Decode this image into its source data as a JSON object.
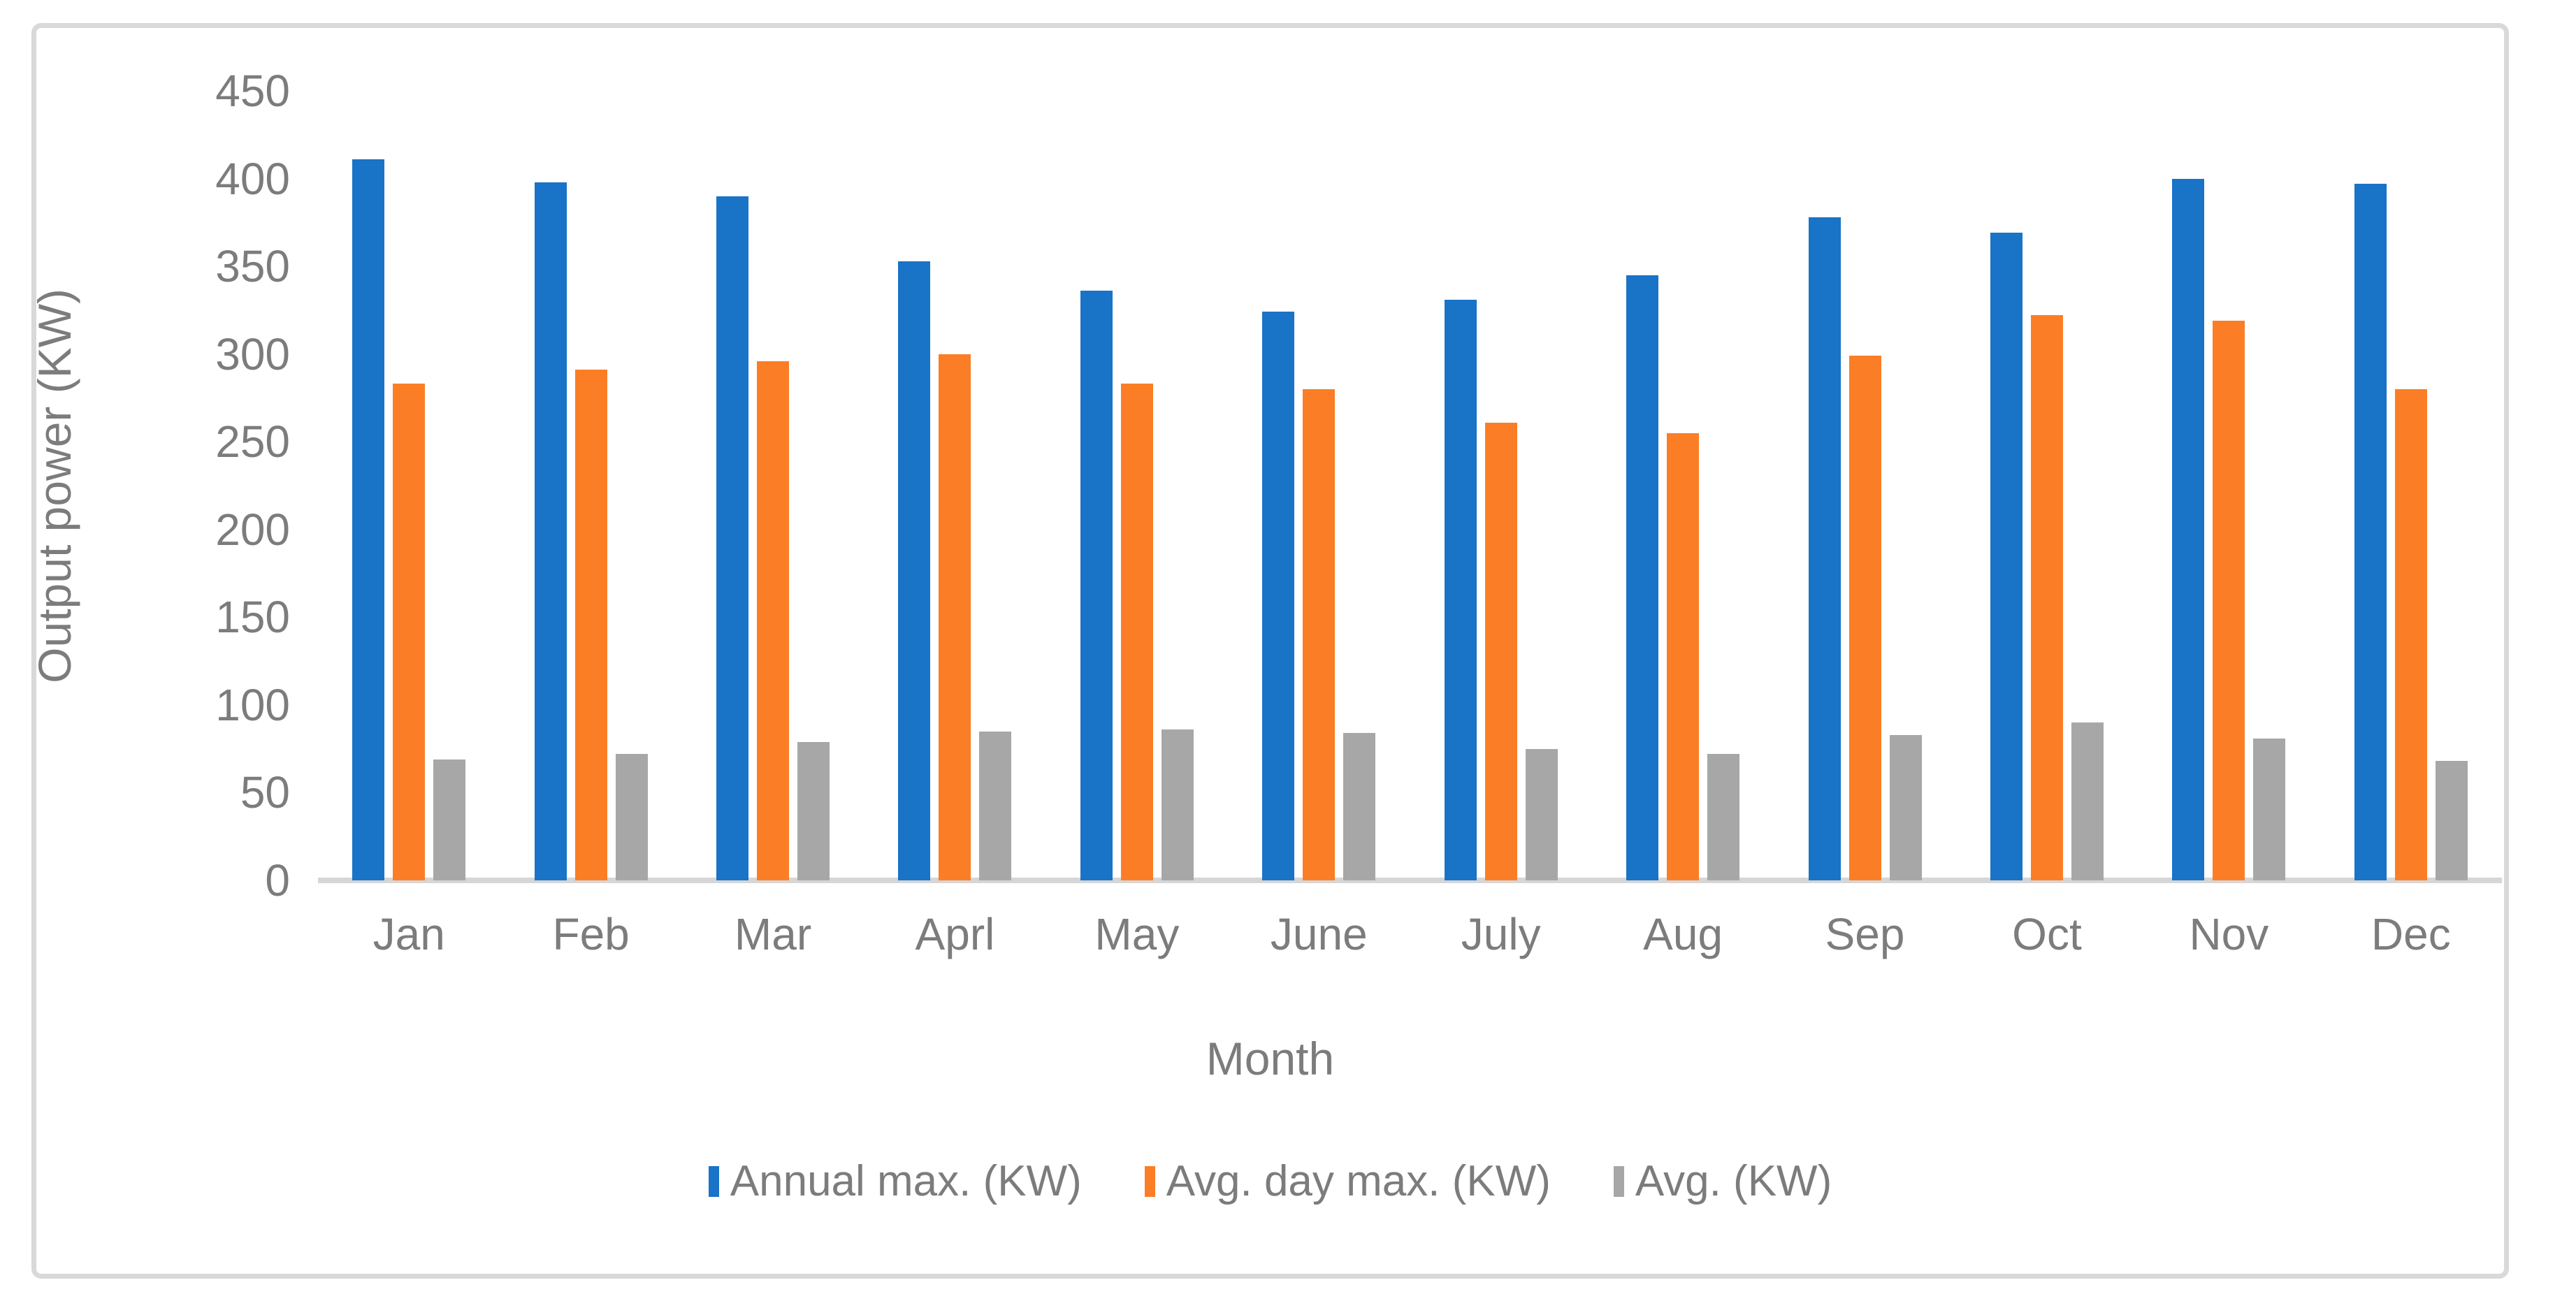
{
  "figure": {
    "background": "#ffffff",
    "frame_border_color": "#d9d9d9",
    "text_color": "#7c7c7c",
    "axis_line_color": "#d6d6d6"
  },
  "chart_data": {
    "type": "bar",
    "title": "",
    "categories": [
      "Jan",
      "Feb",
      "Mar",
      "Aprl",
      "May",
      "June",
      "July",
      "Aug",
      "Sep",
      "Oct",
      "Nov",
      "Dec"
    ],
    "series": [
      {
        "name": "Annual max. (KW)",
        "color": "#1973c6",
        "values": [
          411,
          398,
          390,
          353,
          336,
          324,
          331,
          345,
          378,
          369,
          400,
          397
        ]
      },
      {
        "name": "Avg. day max. (KW)",
        "color": "#fb7e26",
        "values": [
          283,
          291,
          296,
          300,
          283,
          280,
          261,
          255,
          299,
          322,
          319,
          280
        ]
      },
      {
        "name": "Avg. (KW)",
        "color": "#a7a7a7",
        "values": [
          69,
          72,
          79,
          85,
          86,
          84,
          75,
          72,
          83,
          90,
          81,
          68
        ]
      }
    ],
    "xlabel": "Month",
    "ylabel": "Output power (KW)",
    "ylim": [
      0,
      450
    ],
    "yticks": [
      0,
      50,
      100,
      150,
      200,
      250,
      300,
      350,
      400,
      450
    ],
    "grid": false,
    "legend_position": "bottom"
  }
}
